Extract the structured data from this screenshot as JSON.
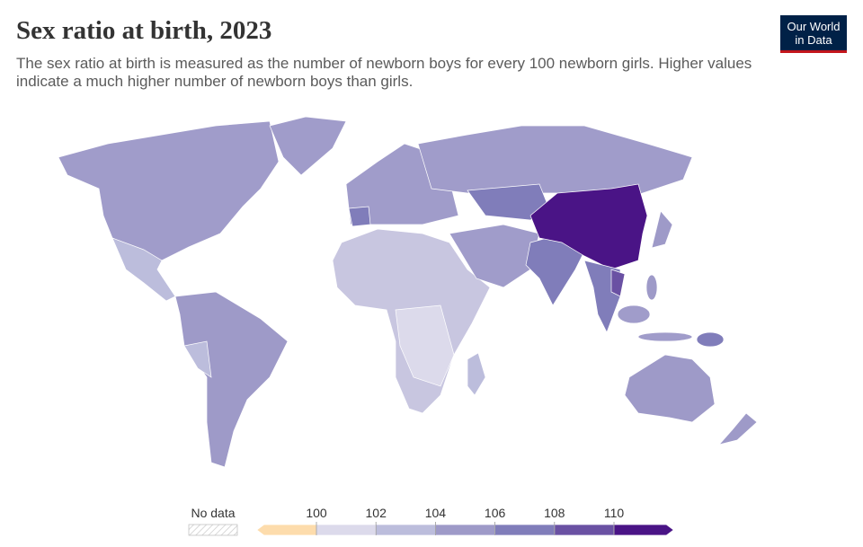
{
  "header": {
    "title": "Sex ratio at birth, 2023",
    "subtitle": "The sex ratio at birth is measured as the number of newborn boys for every 100 newborn girls. Higher values indicate a much higher number of newborn boys than girls.",
    "logo": [
      "Our World",
      "in Data"
    ]
  },
  "legend": {
    "no_data": "No data",
    "ticks": [
      100,
      102,
      104,
      106,
      108,
      110
    ],
    "colors": [
      "#fddcac",
      "#dcdaeb",
      "#bcbddc",
      "#9e9ac8",
      "#807dba",
      "#6a51a3",
      "#4a1486"
    ]
  }
}
